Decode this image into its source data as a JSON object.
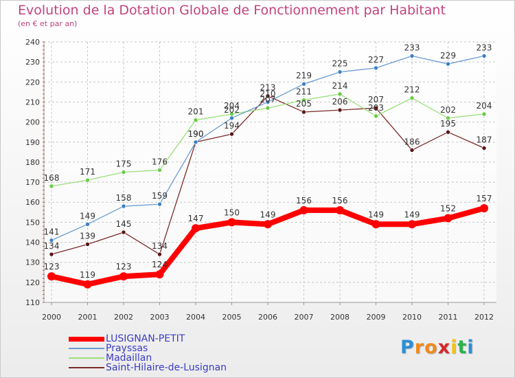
{
  "chart_data": {
    "type": "line",
    "title": "Evolution de la Dotation Globale de Fonctionnement par Habitant",
    "subtitle": "(en € et par an)",
    "xlabel": "",
    "ylabel": "",
    "x": [
      "2000",
      "2001",
      "2002",
      "2003",
      "2004",
      "2005",
      "2006",
      "2007",
      "2008",
      "2009",
      "2010",
      "2011",
      "2012"
    ],
    "ylim": [
      110,
      240
    ],
    "yticks": [
      "110",
      "120",
      "130",
      "140",
      "150",
      "160",
      "170",
      "180",
      "190",
      "200",
      "210",
      "220",
      "230",
      "240"
    ],
    "grid": true,
    "legend_position": "bottom-left",
    "series": [
      {
        "name": "LUSIGNAN-PETIT",
        "color": "#ff0000",
        "values": [
          123,
          119,
          123,
          124,
          147,
          150,
          149,
          156,
          156,
          149,
          149,
          152,
          157
        ],
        "labels": [
          "123",
          "119",
          "123",
          "124",
          "147",
          "150",
          "149",
          "156",
          "156",
          "149",
          "149",
          "152",
          "157"
        ]
      },
      {
        "name": "Prayssas",
        "color": "#6b9bd1",
        "marker": "#3b7fc4",
        "values": [
          141,
          149,
          158,
          159,
          190,
          202,
          210,
          219,
          225,
          227,
          233,
          229,
          233
        ],
        "labels": [
          "141",
          "149",
          "158",
          "159",
          "190",
          "202",
          "210",
          "219",
          "225",
          "227",
          "233",
          "229",
          "233"
        ]
      },
      {
        "name": "Madaillan",
        "color": "#9be07a",
        "marker": "#6cc94a",
        "values": [
          168,
          171,
          175,
          176,
          201,
          204,
          207,
          211,
          214,
          203,
          212,
          202,
          204
        ],
        "labels": [
          "168",
          "171",
          "175",
          "176",
          "201",
          "204",
          "207",
          "211",
          "214",
          "203",
          "212",
          "202",
          "204"
        ]
      },
      {
        "name": "Saint-Hilaire-de-Lusignan",
        "color": "#7a2a2a",
        "marker": "#5a1515",
        "values": [
          134,
          139,
          145,
          134,
          190,
          194,
          213,
          205,
          206,
          207,
          186,
          195,
          187
        ],
        "labels": [
          "134",
          "139",
          "145",
          "134",
          "190",
          "194",
          "213",
          "205",
          "206",
          "207",
          "186",
          "195",
          "187"
        ]
      }
    ]
  },
  "logo": {
    "letters": [
      "P",
      "r",
      "o",
      "x",
      "i",
      "t",
      "i"
    ],
    "colors": [
      "#2b8fd6",
      "#f08a1c",
      "#f08a1c",
      "#d42a2a",
      "#f0c21c",
      "#2bb24a",
      "#2b8fd6"
    ]
  }
}
